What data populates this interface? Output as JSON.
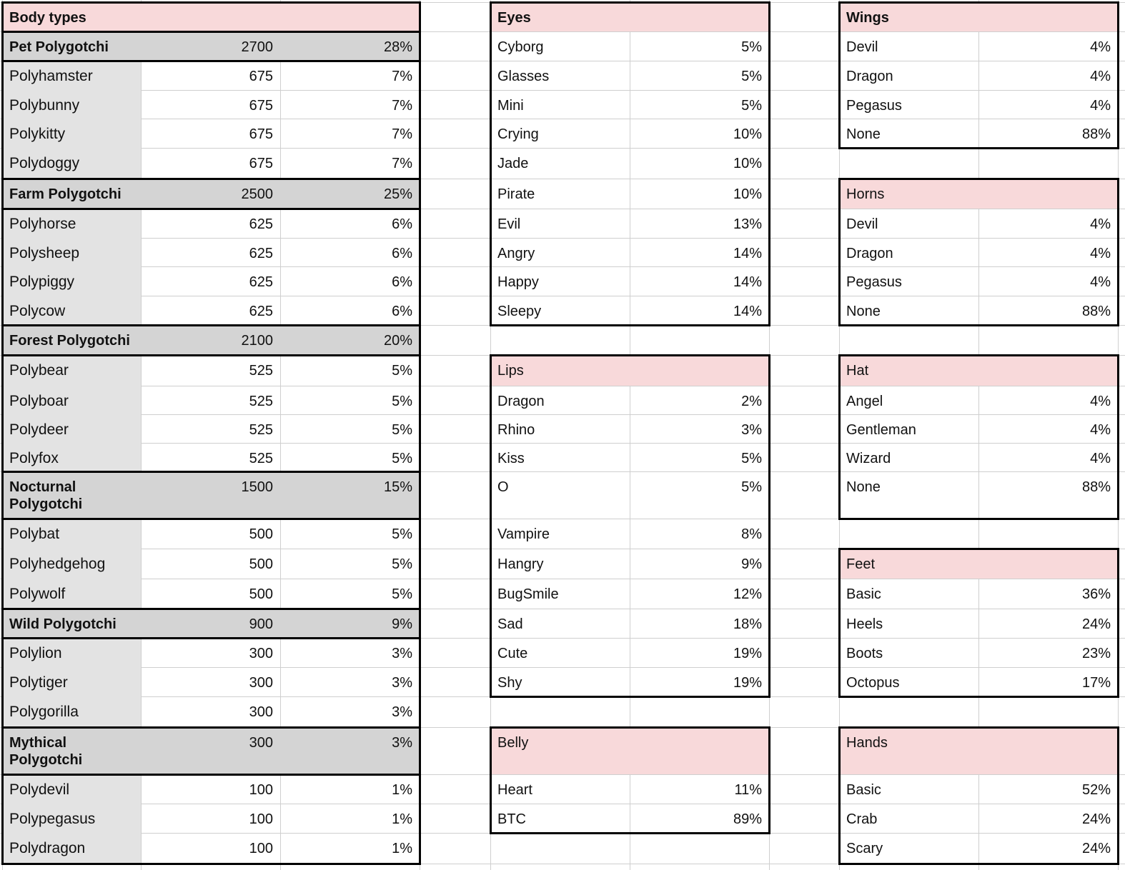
{
  "body_types": {
    "title": "Body types",
    "groups": [
      {
        "name": "Pet Polygotchi",
        "count": "2700",
        "pct": "28%",
        "items": [
          {
            "name": "Polyhamster",
            "count": "675",
            "pct": "7%"
          },
          {
            "name": "Polybunny",
            "count": "675",
            "pct": "7%"
          },
          {
            "name": "Polykitty",
            "count": "675",
            "pct": "7%"
          },
          {
            "name": "Polydoggy",
            "count": "675",
            "pct": "7%"
          }
        ]
      },
      {
        "name": "Farm Polygotchi",
        "count": "2500",
        "pct": "25%",
        "items": [
          {
            "name": "Polyhorse",
            "count": "625",
            "pct": "6%"
          },
          {
            "name": "Polysheep",
            "count": "625",
            "pct": "6%"
          },
          {
            "name": "Polypiggy",
            "count": "625",
            "pct": "6%"
          },
          {
            "name": "Polycow",
            "count": "625",
            "pct": "6%"
          }
        ]
      },
      {
        "name": "Forest Polygotchi",
        "count": "2100",
        "pct": "20%",
        "items": [
          {
            "name": "Polybear",
            "count": "525",
            "pct": "5%"
          },
          {
            "name": "Polyboar",
            "count": "525",
            "pct": "5%"
          },
          {
            "name": "Polydeer",
            "count": "525",
            "pct": "5%"
          },
          {
            "name": "Polyfox",
            "count": "525",
            "pct": "5%"
          }
        ]
      },
      {
        "name": "Nocturnal\nPolygotchi",
        "count": "1500",
        "pct": "15%",
        "items": [
          {
            "name": "Polybat",
            "count": "500",
            "pct": "5%"
          },
          {
            "name": "Polyhedgehog",
            "count": "500",
            "pct": "5%"
          },
          {
            "name": "Polywolf",
            "count": "500",
            "pct": "5%"
          }
        ]
      },
      {
        "name": "Wild Polygotchi",
        "count": "900",
        "pct": "9%",
        "items": [
          {
            "name": "Polylion",
            "count": "300",
            "pct": "3%"
          },
          {
            "name": "Polytiger",
            "count": "300",
            "pct": "3%"
          },
          {
            "name": "Polygorilla",
            "count": "300",
            "pct": "3%"
          }
        ]
      },
      {
        "name": "Mythical\nPolygotchi",
        "count": "300",
        "pct": "3%",
        "items": [
          {
            "name": "Polydevil",
            "count": "100",
            "pct": "1%"
          },
          {
            "name": "Polypegasus",
            "count": "100",
            "pct": "1%"
          },
          {
            "name": "Polydragon",
            "count": "100",
            "pct": "1%"
          }
        ]
      }
    ]
  },
  "trait_tables": [
    {
      "title": "Eyes",
      "bold_title": true,
      "rows": [
        {
          "name": "Cyborg",
          "pct": "5%"
        },
        {
          "name": "Glasses",
          "pct": "5%"
        },
        {
          "name": "Mini",
          "pct": "5%"
        },
        {
          "name": "Crying",
          "pct": "10%"
        },
        {
          "name": "Jade",
          "pct": "10%"
        },
        {
          "name": "Pirate",
          "pct": "10%"
        },
        {
          "name": "Evil",
          "pct": "13%"
        },
        {
          "name": "Angry",
          "pct": "14%"
        },
        {
          "name": "Happy",
          "pct": "14%"
        },
        {
          "name": "Sleepy",
          "pct": "14%"
        }
      ]
    },
    {
      "title": "Lips",
      "bold_title": false,
      "rows": [
        {
          "name": "Dragon",
          "pct": "2%"
        },
        {
          "name": "Rhino",
          "pct": "3%"
        },
        {
          "name": "Kiss",
          "pct": "5%"
        },
        {
          "name": "O",
          "pct": "5%"
        },
        {
          "name": "Vampire",
          "pct": "8%"
        },
        {
          "name": "Hangry",
          "pct": "9%"
        },
        {
          "name": "BugSmile",
          "pct": "12%"
        },
        {
          "name": "Sad",
          "pct": "18%"
        },
        {
          "name": "Cute",
          "pct": "19%"
        },
        {
          "name": "Shy",
          "pct": "19%"
        }
      ]
    },
    {
      "title": "Belly",
      "bold_title": false,
      "rows": [
        {
          "name": "Heart",
          "pct": "11%"
        },
        {
          "name": "BTC",
          "pct": "89%"
        }
      ]
    },
    {
      "title": "Wings",
      "bold_title": true,
      "rows": [
        {
          "name": "Devil",
          "pct": "4%"
        },
        {
          "name": "Dragon",
          "pct": "4%"
        },
        {
          "name": "Pegasus",
          "pct": "4%"
        },
        {
          "name": "None",
          "pct": "88%"
        }
      ]
    },
    {
      "title": "Horns",
      "bold_title": false,
      "rows": [
        {
          "name": "Devil",
          "pct": "4%"
        },
        {
          "name": "Dragon",
          "pct": "4%"
        },
        {
          "name": "Pegasus",
          "pct": "4%"
        },
        {
          "name": "None",
          "pct": "88%"
        }
      ]
    },
    {
      "title": "Hat",
      "bold_title": false,
      "rows": [
        {
          "name": "Angel",
          "pct": "4%"
        },
        {
          "name": "Gentleman",
          "pct": "4%"
        },
        {
          "name": "Wizard",
          "pct": "4%"
        },
        {
          "name": "None",
          "pct": "88%"
        }
      ]
    },
    {
      "title": "Feet",
      "bold_title": false,
      "rows": [
        {
          "name": "Basic",
          "pct": "36%"
        },
        {
          "name": "Heels",
          "pct": "24%"
        },
        {
          "name": "Boots",
          "pct": "23%"
        },
        {
          "name": "Octopus",
          "pct": "17%"
        }
      ]
    },
    {
      "title": "Hands",
      "bold_title": false,
      "rows": [
        {
          "name": "Basic",
          "pct": "52%"
        },
        {
          "name": "Crab",
          "pct": "24%"
        },
        {
          "name": "Scary",
          "pct": "24%"
        }
      ]
    }
  ]
}
